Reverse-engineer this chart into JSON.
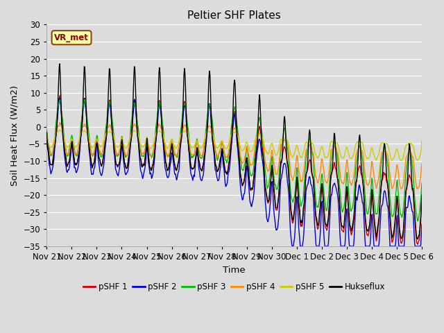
{
  "title": "Peltier SHF Plates",
  "xlabel": "Time",
  "ylabel": "Soil Heat Flux (W/m2)",
  "ylim": [
    -35,
    30
  ],
  "background_color": "#dcdcdc",
  "plot_bg_color": "#dcdcdc",
  "legend_labels": [
    "pSHF 1",
    "pSHF 2",
    "pSHF 3",
    "pSHF 4",
    "pSHF 5",
    "Hukseflux"
  ],
  "line_colors": [
    "#cc0000",
    "#0000cc",
    "#00bb00",
    "#ff8800",
    "#cccc00",
    "#000000"
  ],
  "xtick_labels": [
    "Nov 21",
    "Nov 22",
    "Nov 23",
    "Nov 24",
    "Nov 25",
    "Nov 26",
    "Nov 27",
    "Nov 28",
    "Nov 29",
    "Nov 30",
    "Dec 1",
    "Dec 2",
    "Dec 3",
    "Dec 4",
    "Dec 5",
    "Dec 6"
  ],
  "annotation_text": "VR_met",
  "annotation_color": "#8B0000",
  "annotation_bg": "#ffffaa",
  "annotation_border": "#8B4513",
  "grid_color": "#ffffff",
  "spine_color": "#aaaaaa"
}
